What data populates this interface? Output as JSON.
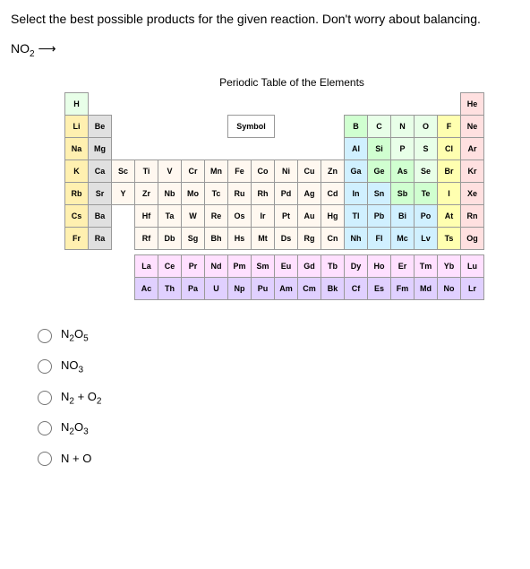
{
  "question": "Select the best possible products for the given reaction. Don't worry about balancing.",
  "reaction_left": "NO",
  "reaction_sub": "2",
  "pt_title": "Periodic Table of the Elements",
  "key_label": "Symbol",
  "elements": {
    "H": "H",
    "He": "He",
    "Li": "Li",
    "Be": "Be",
    "B": "B",
    "C": "C",
    "N": "N",
    "O": "O",
    "F": "F",
    "Ne": "Ne",
    "Na": "Na",
    "Mg": "Mg",
    "Al": "Al",
    "Si": "Si",
    "P": "P",
    "S": "S",
    "Cl": "Cl",
    "Ar": "Ar",
    "K": "K",
    "Ca": "Ca",
    "Sc": "Sc",
    "Ti": "Ti",
    "V": "V",
    "Cr": "Cr",
    "Mn": "Mn",
    "Fe": "Fe",
    "Co": "Co",
    "Ni": "Ni",
    "Cu": "Cu",
    "Zn": "Zn",
    "Ga": "Ga",
    "Ge": "Ge",
    "As": "As",
    "Se": "Se",
    "Br": "Br",
    "Kr": "Kr",
    "Rb": "Rb",
    "Sr": "Sr",
    "Y": "Y",
    "Zr": "Zr",
    "Nb": "Nb",
    "Mo": "Mo",
    "Tc": "Tc",
    "Ru": "Ru",
    "Rh": "Rh",
    "Pd": "Pd",
    "Ag": "Ag",
    "Cd": "Cd",
    "In": "In",
    "Sn": "Sn",
    "Sb": "Sb",
    "Te": "Te",
    "I": "I",
    "Xe": "Xe",
    "Cs": "Cs",
    "Ba": "Ba",
    "Hf": "Hf",
    "Ta": "Ta",
    "W": "W",
    "Re": "Re",
    "Os": "Os",
    "Ir": "Ir",
    "Pt": "Pt",
    "Au": "Au",
    "Hg": "Hg",
    "Tl": "Tl",
    "Pb": "Pb",
    "Bi": "Bi",
    "Po": "Po",
    "At": "At",
    "Rn": "Rn",
    "Fr": "Fr",
    "Ra": "Ra",
    "Rf": "Rf",
    "Db": "Db",
    "Sg": "Sg",
    "Bh": "Bh",
    "Hs": "Hs",
    "Mt": "Mt",
    "Ds": "Ds",
    "Rg": "Rg",
    "Cn": "Cn",
    "Nh": "Nh",
    "Fl": "Fl",
    "Mc": "Mc",
    "Lv": "Lv",
    "Ts": "Ts",
    "Og": "Og",
    "La": "La",
    "Ce": "Ce",
    "Pr": "Pr",
    "Nd": "Nd",
    "Pm": "Pm",
    "Sm": "Sm",
    "Eu": "Eu",
    "Gd": "Gd",
    "Tb": "Tb",
    "Dy": "Dy",
    "Ho": "Ho",
    "Er": "Er",
    "Tm": "Tm",
    "Yb": "Yb",
    "Lu": "Lu",
    "Ac": "Ac",
    "Th": "Th",
    "Pa": "Pa",
    "U": "U",
    "Np": "Np",
    "Pu": "Pu",
    "Am": "Am",
    "Cm": "Cm",
    "Bk": "Bk",
    "Cf": "Cf",
    "Es": "Es",
    "Fm": "Fm",
    "Md": "Md",
    "No": "No",
    "Lr": "Lr"
  },
  "answers": {
    "a1": {
      "pre": "N",
      "sub1": "2",
      "mid": "O",
      "sub2": "5"
    },
    "a2": {
      "pre": "NO",
      "sub1": "3"
    },
    "a3": {
      "pre": "N",
      "sub1": "2",
      "mid": " + O",
      "sub2": "2"
    },
    "a4": {
      "pre": "N",
      "sub1": "2",
      "mid": "O",
      "sub2": "3"
    },
    "a5": {
      "pre": "N + O"
    }
  }
}
